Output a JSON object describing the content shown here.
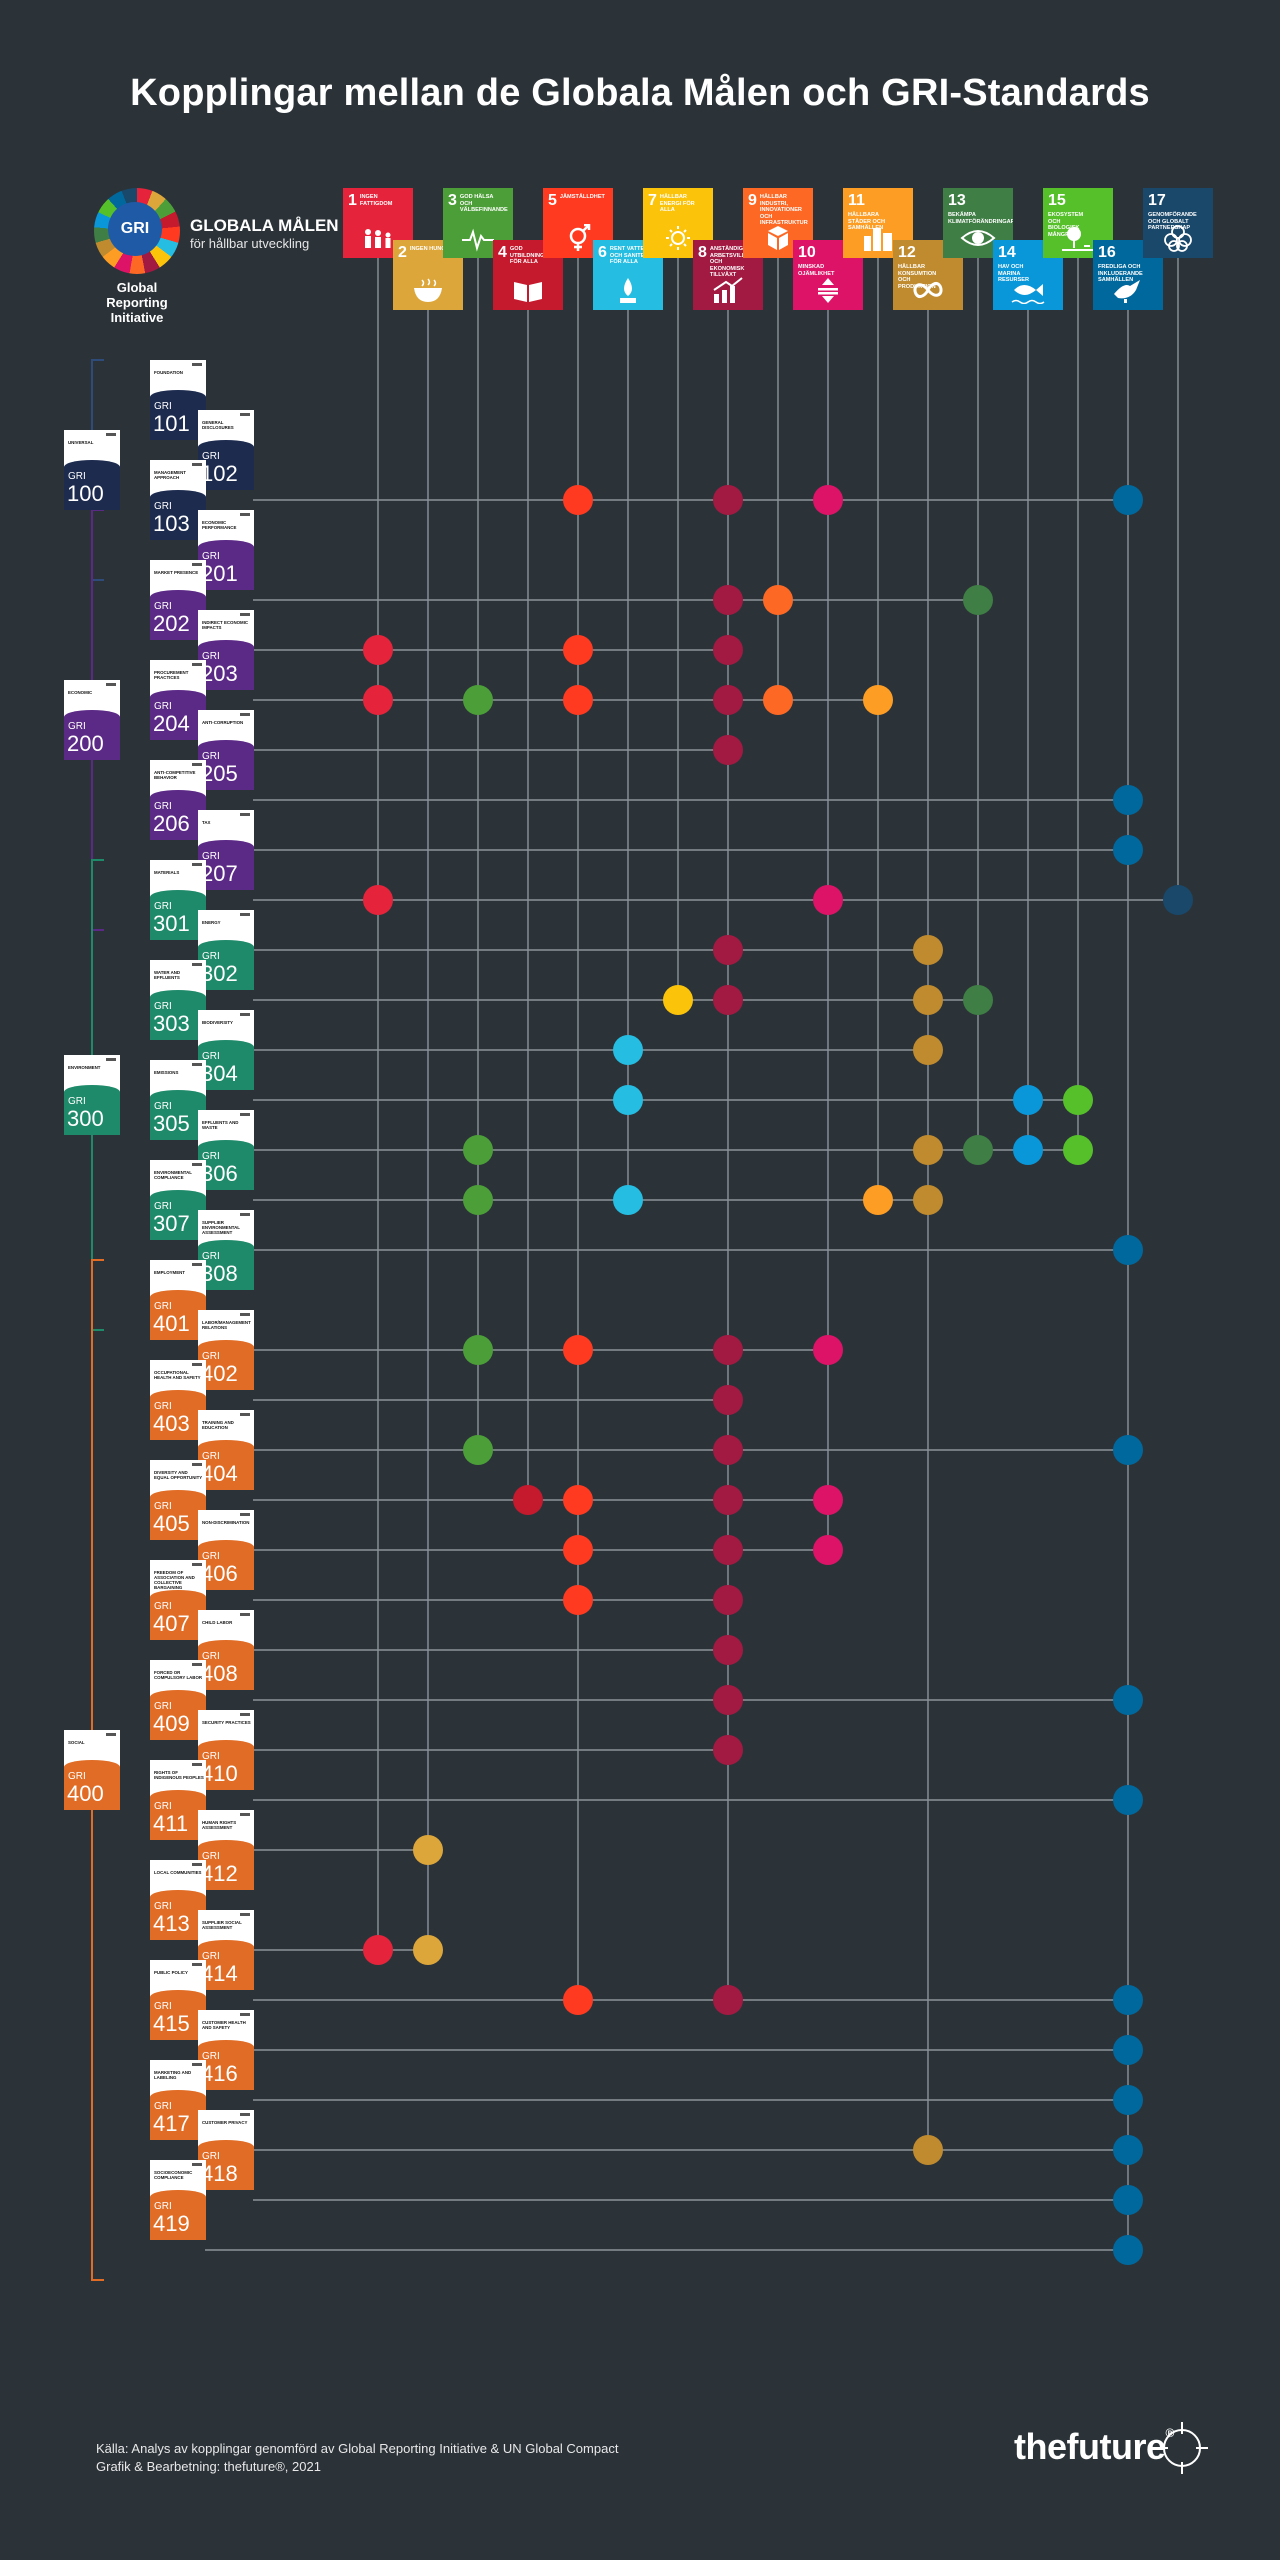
{
  "title": "Kopplingar mellan de Globala Målen och GRI-Standards",
  "logo": {
    "mark": "GRI",
    "goals_title": "GLOBALA MÅLEN",
    "goals_subtitle": "för hållbar utveckling",
    "org": "Global Reporting Initiative"
  },
  "sdgs": [
    {
      "n": 1,
      "name": "Ingen fattigdom",
      "color": "#e5243b",
      "icon": "family-icon"
    },
    {
      "n": 2,
      "name": "Ingen hunger",
      "color": "#dda63a",
      "icon": "bowl-icon"
    },
    {
      "n": 3,
      "name": "God hälsa och välbefinnande",
      "color": "#4c9f38",
      "icon": "heartbeat-icon"
    },
    {
      "n": 4,
      "name": "God utbildning för alla",
      "color": "#c5192d",
      "icon": "book-icon"
    },
    {
      "n": 5,
      "name": "Jämställdhet",
      "color": "#ff3a21",
      "icon": "gender-icon"
    },
    {
      "n": 6,
      "name": "Rent vatten och sanitet för alla",
      "color": "#26bde2",
      "icon": "water-icon"
    },
    {
      "n": 7,
      "name": "Hållbar energi för alla",
      "color": "#fcc30b",
      "icon": "sun-icon"
    },
    {
      "n": 8,
      "name": "Anständiga arbetsvillkor och ekonomisk tillväxt",
      "color": "#a21942",
      "icon": "growth-icon"
    },
    {
      "n": 9,
      "name": "Hållbar industri, innovationer och infrastruktur",
      "color": "#fd6925",
      "icon": "cubes-icon"
    },
    {
      "n": 10,
      "name": "Minskad ojämlikhet",
      "color": "#dd1367",
      "icon": "equality-icon"
    },
    {
      "n": 11,
      "name": "Hållbara städer och samhällen",
      "color": "#fd9d24",
      "icon": "city-icon"
    },
    {
      "n": 12,
      "name": "Hållbar konsumtion och produktion",
      "color": "#bf8b2e",
      "icon": "infinity-icon"
    },
    {
      "n": 13,
      "name": "Bekämpa klimatförändringarna",
      "color": "#3f7e44",
      "icon": "eye-globe-icon"
    },
    {
      "n": 14,
      "name": "Hav och marina resurser",
      "color": "#0a97d9",
      "icon": "fish-icon"
    },
    {
      "n": 15,
      "name": "Ekosystem och biologisk mångfald",
      "color": "#56c02b",
      "icon": "tree-icon"
    },
    {
      "n": 16,
      "name": "Fredliga och inkluderande samhällen",
      "color": "#00689d",
      "icon": "dove-icon"
    },
    {
      "n": 17,
      "name": "Genomförande och globalt partnerskap",
      "color": "#19486a",
      "icon": "rings-icon"
    }
  ],
  "groups": [
    {
      "num": "100",
      "name": "Universal",
      "color": "#1d2b4f"
    },
    {
      "num": "200",
      "name": "Economic",
      "color": "#5b2a86"
    },
    {
      "num": "300",
      "name": "Environment",
      "color": "#1f8a6a"
    },
    {
      "num": "400",
      "name": "Social",
      "color": "#e06c25"
    }
  ],
  "standards": [
    {
      "num": "101",
      "name": "Foundation",
      "group": 0,
      "links": []
    },
    {
      "num": "102",
      "name": "General Disclosures",
      "group": 0,
      "links": [
        5,
        8,
        10,
        16
      ]
    },
    {
      "num": "103",
      "name": "Management Approach",
      "group": 0,
      "links": []
    },
    {
      "num": "201",
      "name": "Economic Performance",
      "group": 1,
      "links": [
        8,
        9,
        13
      ]
    },
    {
      "num": "202",
      "name": "Market Presence",
      "group": 1,
      "links": [
        1,
        5,
        8
      ]
    },
    {
      "num": "203",
      "name": "Indirect Economic Impacts",
      "group": 1,
      "links": [
        1,
        3,
        5,
        8,
        9,
        11
      ]
    },
    {
      "num": "204",
      "name": "Procurement Practices",
      "group": 1,
      "links": [
        8
      ]
    },
    {
      "num": "205",
      "name": "Anti-corruption",
      "group": 1,
      "links": [
        16
      ]
    },
    {
      "num": "206",
      "name": "Anti-competitive Behavior",
      "group": 1,
      "links": [
        16
      ]
    },
    {
      "num": "207",
      "name": "Tax",
      "group": 1,
      "links": [
        1,
        10,
        17
      ]
    },
    {
      "num": "301",
      "name": "Materials",
      "group": 2,
      "links": [
        8,
        12
      ]
    },
    {
      "num": "302",
      "name": "Energy",
      "group": 2,
      "links": [
        7,
        8,
        12,
        13
      ]
    },
    {
      "num": "303",
      "name": "Water and Effluents",
      "group": 2,
      "links": [
        6,
        12
      ]
    },
    {
      "num": "304",
      "name": "Biodiversity",
      "group": 2,
      "links": [
        6,
        14,
        15
      ]
    },
    {
      "num": "305",
      "name": "Emissions",
      "group": 2,
      "links": [
        3,
        12,
        13,
        14,
        15
      ]
    },
    {
      "num": "306",
      "name": "Effluents and Waste",
      "group": 2,
      "links": [
        3,
        6,
        11,
        12
      ]
    },
    {
      "num": "307",
      "name": "Environmental Compliance",
      "group": 2,
      "links": [
        16
      ]
    },
    {
      "num": "308",
      "name": "Supplier Environmental Assessment",
      "group": 2,
      "links": []
    },
    {
      "num": "401",
      "name": "Employment",
      "group": 3,
      "links": [
        3,
        5,
        8,
        10
      ]
    },
    {
      "num": "402",
      "name": "Labor/Management Relations",
      "group": 3,
      "links": [
        8
      ]
    },
    {
      "num": "403",
      "name": "Occupational Health and Safety",
      "group": 3,
      "links": [
        3,
        8,
        16
      ]
    },
    {
      "num": "404",
      "name": "Training and Education",
      "group": 3,
      "links": [
        4,
        5,
        8,
        10
      ]
    },
    {
      "num": "405",
      "name": "Diversity and Equal Opportunity",
      "group": 3,
      "links": [
        5,
        8,
        10
      ]
    },
    {
      "num": "406",
      "name": "Non-discrimination",
      "group": 3,
      "links": [
        5,
        8
      ]
    },
    {
      "num": "407",
      "name": "Freedom of Association and Collective Bargaining",
      "group": 3,
      "links": [
        8
      ]
    },
    {
      "num": "408",
      "name": "Child Labor",
      "group": 3,
      "links": [
        8,
        16
      ]
    },
    {
      "num": "409",
      "name": "Forced or Compulsory Labor",
      "group": 3,
      "links": [
        8
      ]
    },
    {
      "num": "410",
      "name": "Security Practices",
      "group": 3,
      "links": [
        16
      ]
    },
    {
      "num": "411",
      "name": "Rights of Indigenous Peoples",
      "group": 3,
      "links": [
        2
      ]
    },
    {
      "num": "412",
      "name": "Human Rights Assessment",
      "group": 3,
      "links": []
    },
    {
      "num": "413",
      "name": "Local Communities",
      "group": 3,
      "links": [
        1,
        2
      ]
    },
    {
      "num": "414",
      "name": "Supplier Social Assessment",
      "group": 3,
      "links": [
        5,
        8,
        16
      ]
    },
    {
      "num": "415",
      "name": "Public Policy",
      "group": 3,
      "links": [
        16
      ]
    },
    {
      "num": "416",
      "name": "Customer Health and Safety",
      "group": 3,
      "links": [
        16
      ]
    },
    {
      "num": "417",
      "name": "Marketing and Labeling",
      "group": 3,
      "links": [
        12,
        16
      ]
    },
    {
      "num": "418",
      "name": "Customer Privacy",
      "group": 3,
      "links": [
        16
      ]
    },
    {
      "num": "419",
      "name": "Socioeconomic Compliance",
      "group": 3,
      "links": [
        16
      ]
    }
  ],
  "source_line1": "Källa: Analys av kopplingar genomförd av Global Reporting Initiative & UN Global Compact",
  "source_line2": "Grafik & Bearbetning: thefuture®, 2021",
  "brand": "thefuture",
  "brand_mark": "®"
}
